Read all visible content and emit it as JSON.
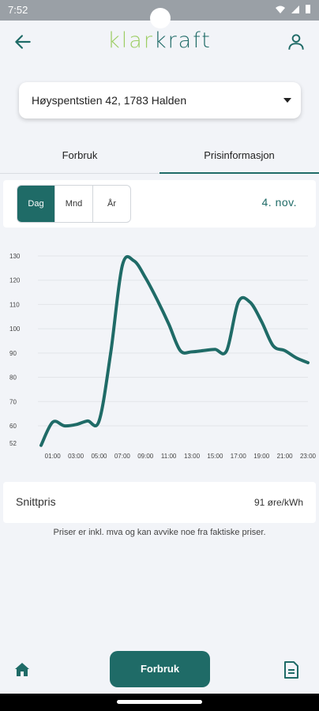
{
  "status_bar": {
    "time": "7:52"
  },
  "app": {
    "logo_part1": "klar",
    "logo_part2": "kraft"
  },
  "address": {
    "value": "Høyspentstien 42, 1783 Halden"
  },
  "tabs": [
    {
      "label": "Forbruk"
    },
    {
      "label": "Prisinformasjon"
    }
  ],
  "period": {
    "options": [
      "Dag",
      "Mnd",
      "År"
    ],
    "selected": "Dag",
    "date": "4. nov."
  },
  "chart_data": {
    "type": "line",
    "yticks": [
      52,
      60,
      70,
      80,
      90,
      100,
      110,
      120,
      130
    ],
    "xticks": [
      "01:00",
      "03:00",
      "05:00",
      "07:00",
      "09:00",
      "11:00",
      "13:00",
      "15:00",
      "17:00",
      "19:00",
      "21:00",
      "23:00"
    ],
    "x": [
      "00:00",
      "01:00",
      "02:00",
      "03:00",
      "04:00",
      "05:00",
      "06:00",
      "07:00",
      "08:00",
      "09:00",
      "10:00",
      "11:00",
      "12:00",
      "13:00",
      "14:00",
      "15:00",
      "16:00",
      "17:00",
      "18:00",
      "19:00",
      "20:00",
      "21:00",
      "22:00",
      "23:00"
    ],
    "values": [
      51,
      61.5,
      60,
      60.5,
      62,
      62,
      90,
      126,
      128,
      121,
      112,
      102,
      91,
      90.5,
      91,
      91.5,
      91,
      111,
      111,
      103,
      93,
      91,
      88,
      86
    ],
    "ylim": [
      52,
      130
    ],
    "color": "#1f6b67",
    "grid": true
  },
  "average": {
    "label": "Snittpris",
    "value": "91 øre/kWh"
  },
  "note": "Priser er inkl. mva og kan avvike noe fra faktiske priser.",
  "bottom_nav": {
    "main_button": "Forbruk"
  }
}
